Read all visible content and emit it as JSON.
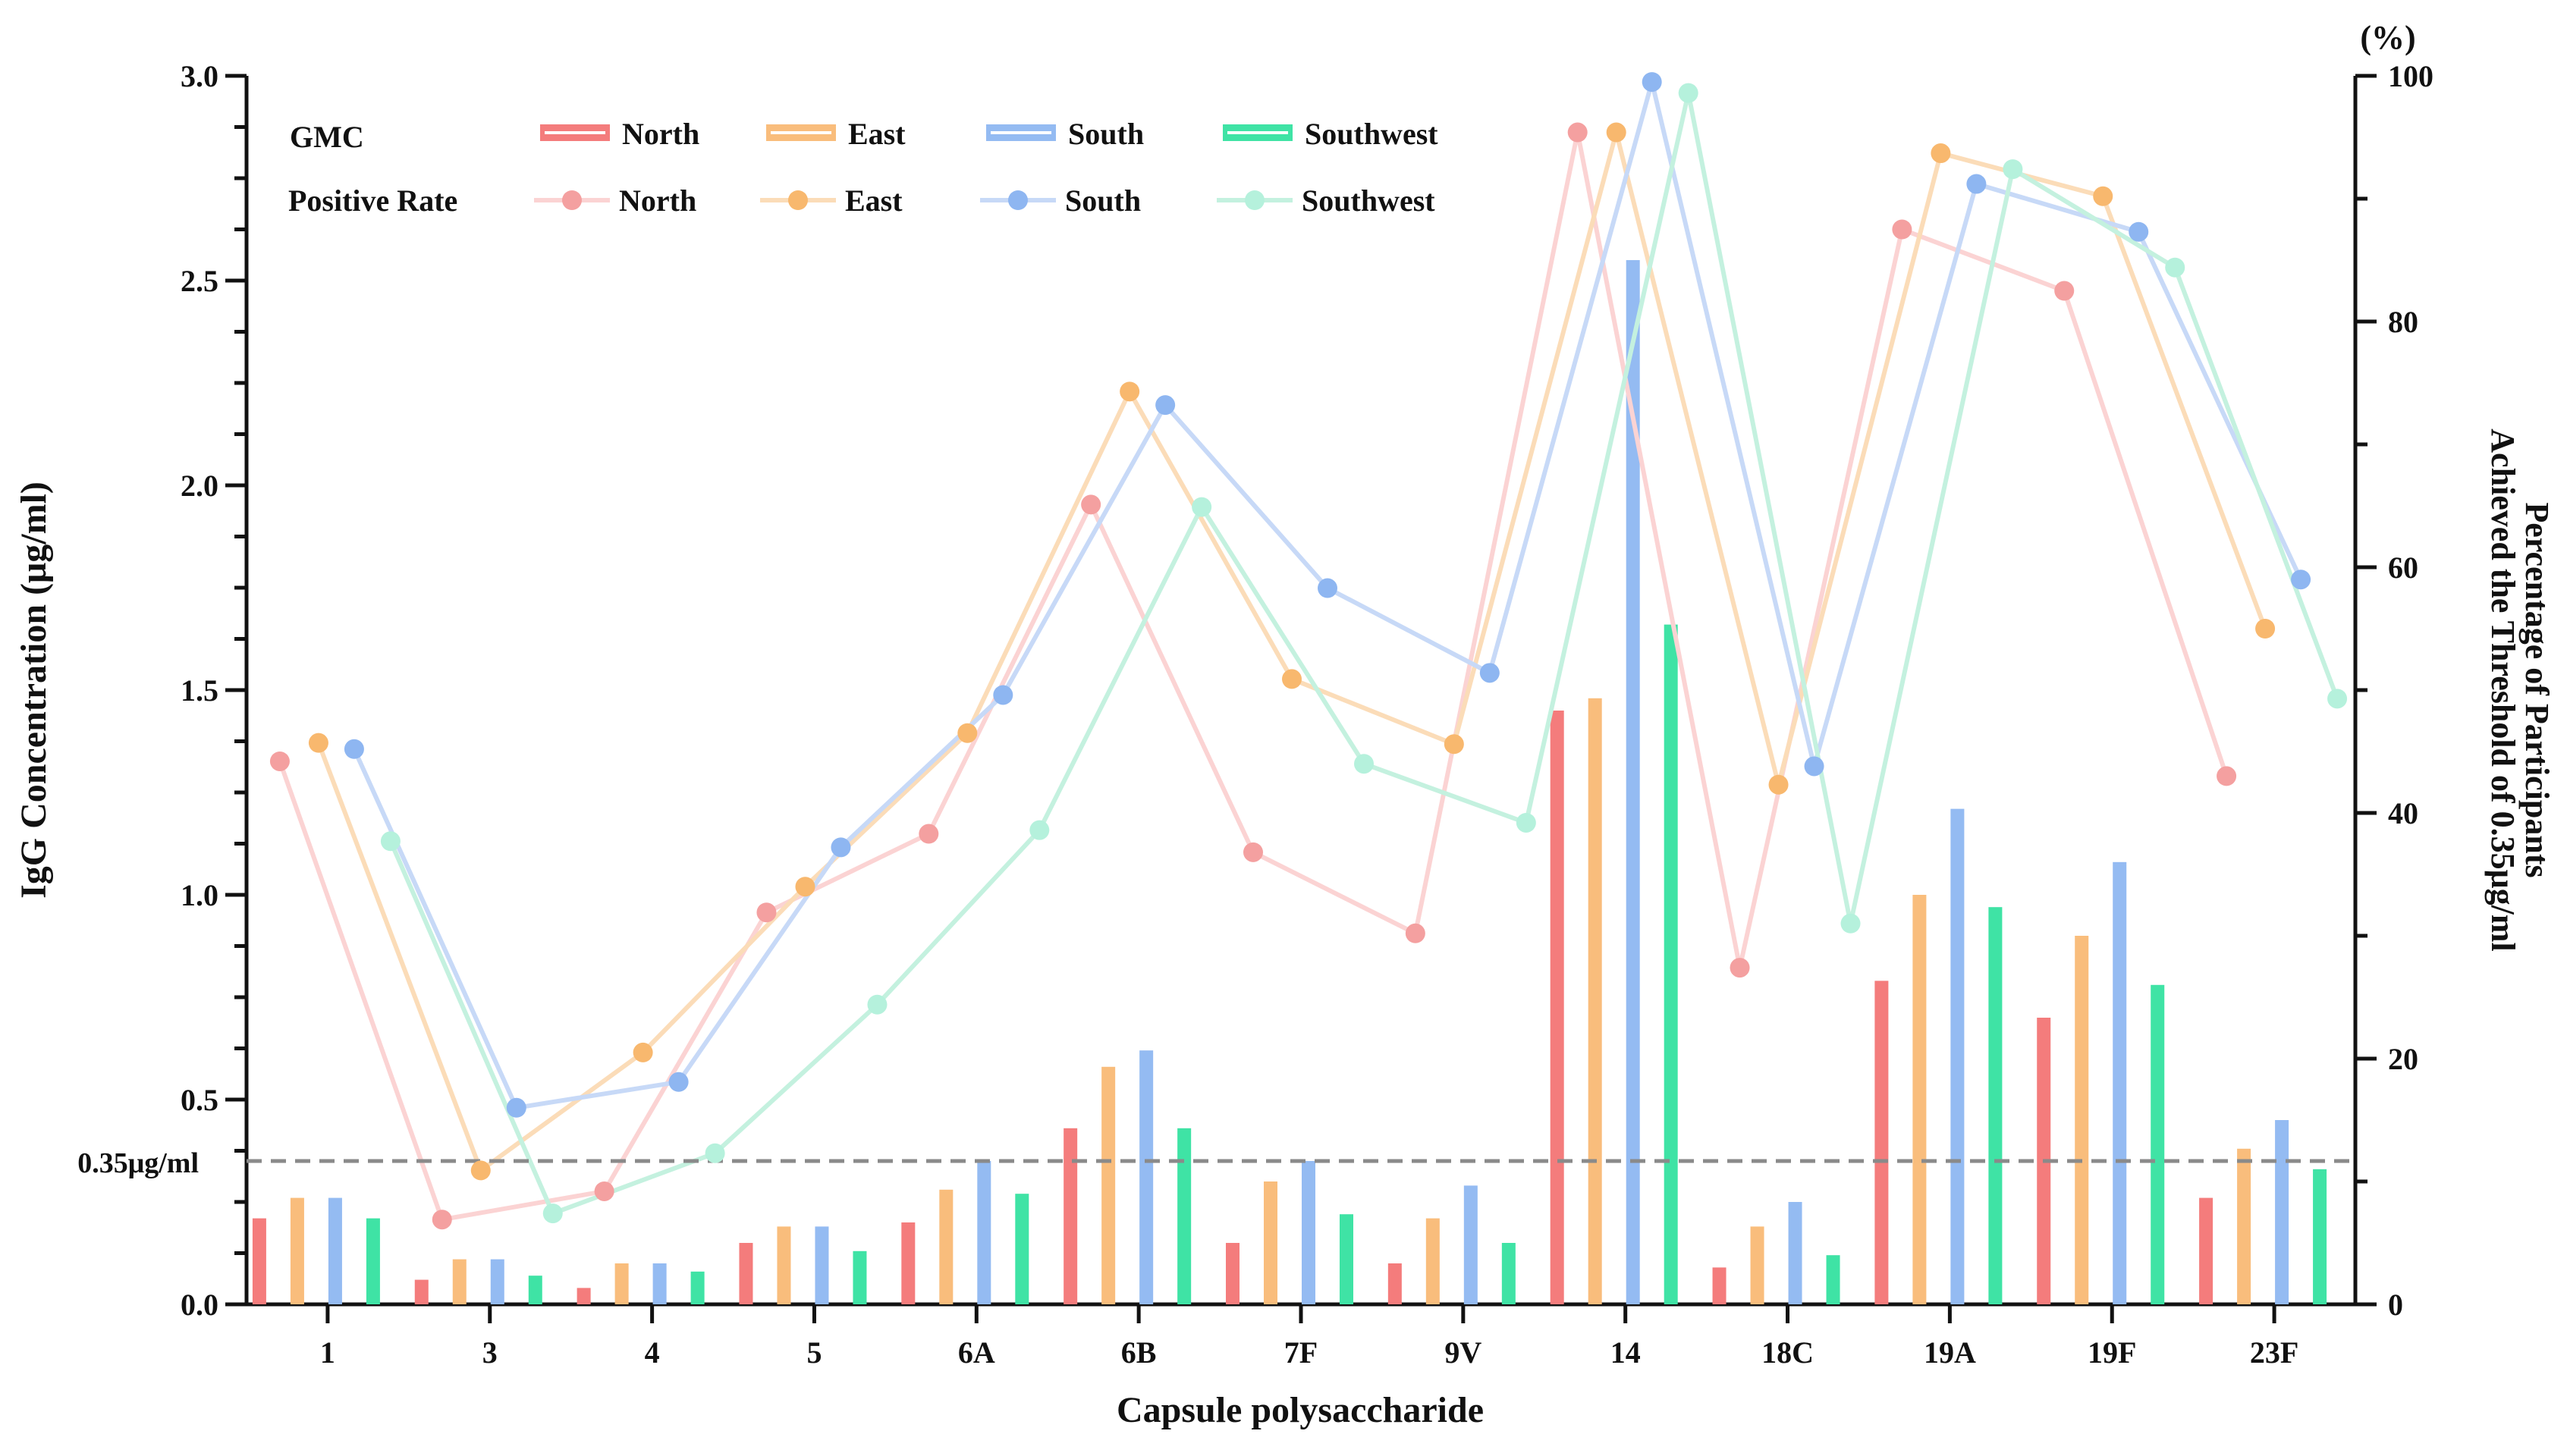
{
  "chart_data": {
    "type": "bar+line",
    "categories": [
      "1",
      "3",
      "4",
      "5",
      "6A",
      "6B",
      "7F",
      "9V",
      "14",
      "18C",
      "19A",
      "19F",
      "23F"
    ],
    "xlabel": "Capsule polysaccharide",
    "ylabel_left": "IgG Concentration (μg/ml)",
    "ylabel_right_line1": "Percentage of Participants",
    "ylabel_right_line2": "Achieved the Threshold of 0.35μg/ml",
    "right_unit": "(%)",
    "ylim_left": [
      0,
      3.0
    ],
    "ylim_right": [
      0,
      100
    ],
    "left_ticks": [
      "0.0",
      "0.5",
      "1.0",
      "1.5",
      "2.0",
      "2.5",
      "3.0"
    ],
    "right_ticks": [
      "0",
      "20",
      "40",
      "60",
      "80",
      "100"
    ],
    "threshold": {
      "value": 0.35,
      "label": "0.35μg/ml"
    },
    "legend": {
      "gmc_label": "GMC",
      "rate_label": "Positive Rate",
      "position": "top-left"
    },
    "series": [
      {
        "name": "North",
        "bar_color": "#f47c7c",
        "line_color": "#fbd3d3",
        "dot_color": "#f4a0a0",
        "gmc": [
          0.21,
          0.06,
          0.04,
          0.15,
          0.2,
          0.43,
          0.15,
          0.1,
          1.45,
          0.09,
          0.79,
          0.7,
          0.26
        ],
        "positive_rate": [
          44.2,
          6.9,
          9.2,
          31.9,
          38.3,
          65.1,
          36.8,
          30.2,
          95.4,
          27.4,
          87.5,
          82.5,
          43.0
        ]
      },
      {
        "name": "East",
        "bar_color": "#f9bd7c",
        "line_color": "#fbdcb8",
        "dot_color": "#f8b86e",
        "gmc": [
          0.26,
          0.11,
          0.1,
          0.19,
          0.28,
          0.58,
          0.3,
          0.21,
          1.48,
          0.19,
          1.0,
          0.9,
          0.38
        ],
        "positive_rate": [
          45.7,
          10.9,
          20.5,
          34.0,
          46.5,
          74.3,
          50.9,
          45.6,
          95.4,
          42.3,
          93.7,
          90.2,
          55.0
        ]
      },
      {
        "name": "South",
        "bar_color": "#94bbf2",
        "line_color": "#c7d9f7",
        "dot_color": "#8eb6f1",
        "gmc": [
          0.26,
          0.11,
          0.1,
          0.19,
          0.35,
          0.62,
          0.35,
          0.29,
          2.55,
          0.25,
          1.21,
          1.08,
          0.45
        ],
        "positive_rate": [
          45.2,
          16.0,
          18.1,
          37.2,
          49.6,
          73.2,
          58.3,
          51.4,
          99.5,
          43.8,
          91.2,
          87.3,
          59.0
        ]
      },
      {
        "name": "Southwest",
        "bar_color": "#3fe3a5",
        "line_color": "#c4f1df",
        "dot_color": "#b5f1dc",
        "gmc": [
          0.21,
          0.07,
          0.08,
          0.13,
          0.27,
          0.43,
          0.22,
          0.15,
          1.66,
          0.12,
          0.97,
          0.78,
          0.33
        ],
        "positive_rate": [
          37.7,
          7.4,
          12.3,
          24.4,
          38.6,
          64.9,
          44.0,
          39.2,
          98.6,
          31.0,
          92.4,
          84.4,
          49.3
        ]
      }
    ]
  }
}
